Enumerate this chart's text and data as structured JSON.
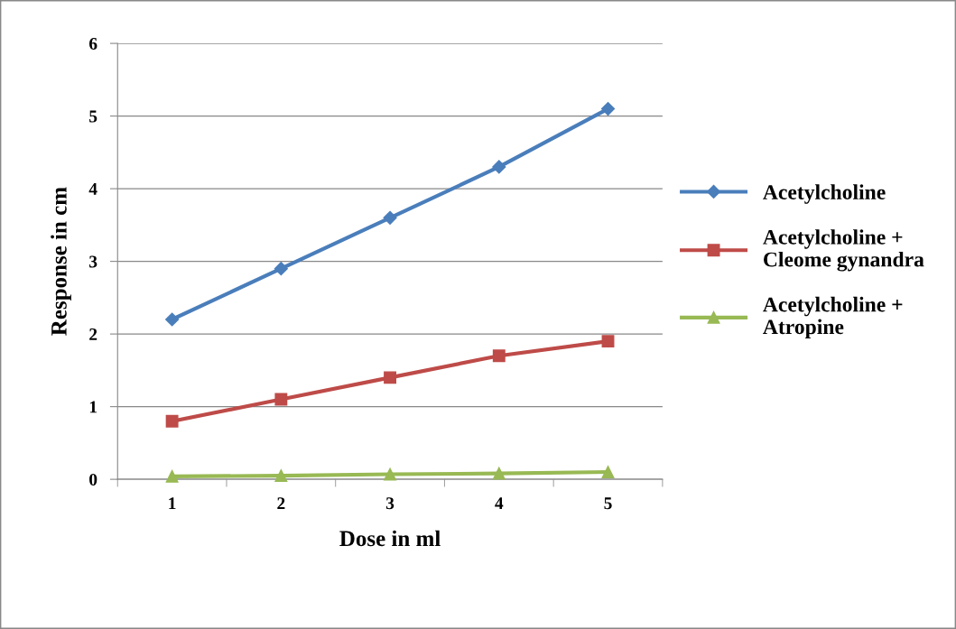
{
  "chart_data": {
    "type": "line",
    "xlabel": "Dose in ml",
    "ylabel": "Response in cm",
    "categories": [
      "1",
      "2",
      "3",
      "4",
      "5"
    ],
    "series": [
      {
        "name": "Acetylcholine",
        "color": "#4a7ebb",
        "marker": "diamond",
        "values": [
          2.2,
          2.9,
          3.6,
          4.3,
          5.1
        ]
      },
      {
        "name": "Acetylcholine + Cleome gynandra",
        "color": "#be4b48",
        "marker": "square",
        "values": [
          0.8,
          1.1,
          1.4,
          1.7,
          1.9
        ]
      },
      {
        "name": "Acetylcholine + Atropine",
        "color": "#98b954",
        "marker": "triangle",
        "values": [
          0.04,
          0.05,
          0.07,
          0.08,
          0.1
        ]
      }
    ],
    "ylim": [
      0,
      6
    ],
    "yticks": [
      0,
      1,
      2,
      3,
      4,
      5,
      6
    ],
    "grid": "y",
    "legend": "right"
  }
}
